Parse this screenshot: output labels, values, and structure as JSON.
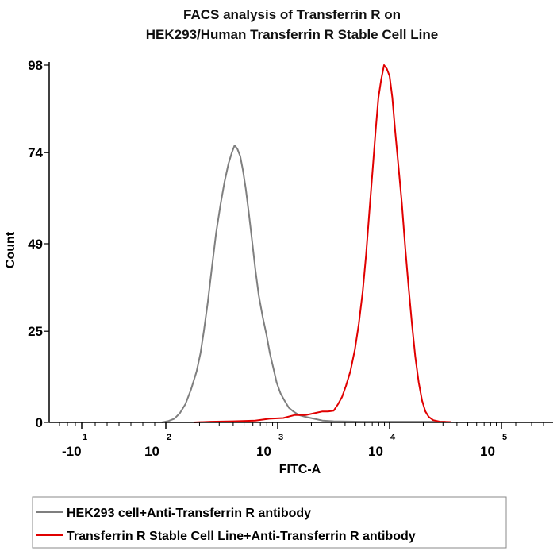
{
  "chart_data": {
    "type": "line",
    "title": [
      "FACS analysis of Transferrin R on",
      "HEK293/Human Transferrin R Stable Cell Line"
    ],
    "xlabel": "FITC-A",
    "ylabel": "Count",
    "xscale": "biexponential",
    "x_ticks": [
      {
        "base": "-10",
        "exp": "1",
        "value": -10
      },
      {
        "base": "10",
        "exp": "2",
        "value": 100
      },
      {
        "base": "10",
        "exp": "3",
        "value": 1000
      },
      {
        "base": "10",
        "exp": "4",
        "value": 10000
      },
      {
        "base": "10",
        "exp": "5",
        "value": 100000
      }
    ],
    "y_ticks": [
      "0",
      "25",
      "49",
      "74",
      "98"
    ],
    "ylim": [
      0,
      98
    ],
    "legend_position": "bottom-left",
    "series": [
      {
        "name": "HEK293 cell+Anti-Transferrin R antibody",
        "color": "#7f7f7f",
        "points": [
          [
            2.9,
            0
          ],
          [
            3.05,
            0.4
          ],
          [
            3.15,
            1
          ],
          [
            3.25,
            2.5
          ],
          [
            3.35,
            5
          ],
          [
            3.45,
            9
          ],
          [
            3.55,
            14
          ],
          [
            3.62,
            19
          ],
          [
            3.68,
            25
          ],
          [
            3.75,
            33
          ],
          [
            3.82,
            42
          ],
          [
            3.9,
            52
          ],
          [
            3.98,
            60
          ],
          [
            4.05,
            66
          ],
          [
            4.12,
            71
          ],
          [
            4.18,
            74
          ],
          [
            4.23,
            76
          ],
          [
            4.28,
            75
          ],
          [
            4.33,
            73
          ],
          [
            4.38,
            69
          ],
          [
            4.43,
            64
          ],
          [
            4.48,
            58
          ],
          [
            4.54,
            50
          ],
          [
            4.6,
            42
          ],
          [
            4.66,
            35
          ],
          [
            4.73,
            29
          ],
          [
            4.8,
            24
          ],
          [
            4.86,
            19
          ],
          [
            4.92,
            15
          ],
          [
            4.98,
            11
          ],
          [
            5.05,
            8
          ],
          [
            5.12,
            6
          ],
          [
            5.2,
            4
          ],
          [
            5.28,
            3
          ],
          [
            5.38,
            2
          ],
          [
            5.5,
            1.5
          ],
          [
            5.65,
            1
          ],
          [
            5.8,
            0.5
          ],
          [
            6.0,
            0.3
          ],
          [
            6.5,
            0.2
          ],
          [
            7.5,
            0.2
          ],
          [
            8.0,
            0.2
          ]
        ]
      },
      {
        "name": "Transferrin R Stable Cell Line+Anti-Transferrin R antibody",
        "color": "#e00000",
        "points": [
          [
            3.5,
            0
          ],
          [
            3.8,
            0.2
          ],
          [
            4.2,
            0.3
          ],
          [
            4.6,
            0.5
          ],
          [
            4.85,
            1
          ],
          [
            5.1,
            1.2
          ],
          [
            5.3,
            2
          ],
          [
            5.5,
            2
          ],
          [
            5.65,
            2.5
          ],
          [
            5.8,
            3
          ],
          [
            5.9,
            3
          ],
          [
            6.0,
            3.2
          ],
          [
            6.08,
            5
          ],
          [
            6.15,
            7
          ],
          [
            6.22,
            10
          ],
          [
            6.3,
            14
          ],
          [
            6.38,
            20
          ],
          [
            6.45,
            27
          ],
          [
            6.52,
            36
          ],
          [
            6.58,
            46
          ],
          [
            6.64,
            58
          ],
          [
            6.7,
            70
          ],
          [
            6.75,
            80
          ],
          [
            6.8,
            89
          ],
          [
            6.85,
            94
          ],
          [
            6.9,
            98
          ],
          [
            6.95,
            97
          ],
          [
            7.0,
            95
          ],
          [
            7.05,
            89
          ],
          [
            7.1,
            80
          ],
          [
            7.16,
            70
          ],
          [
            7.22,
            60
          ],
          [
            7.28,
            48
          ],
          [
            7.34,
            37
          ],
          [
            7.4,
            27
          ],
          [
            7.46,
            18
          ],
          [
            7.52,
            11
          ],
          [
            7.58,
            6
          ],
          [
            7.64,
            3
          ],
          [
            7.7,
            1.5
          ],
          [
            7.78,
            0.6
          ],
          [
            7.9,
            0.2
          ],
          [
            8.1,
            0.1
          ]
        ]
      }
    ]
  }
}
